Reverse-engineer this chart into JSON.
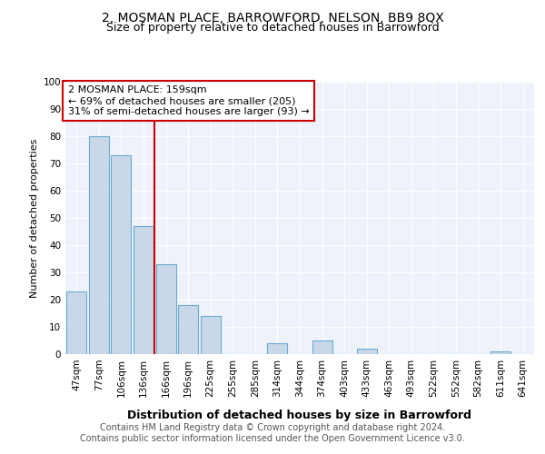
{
  "title": "2, MOSMAN PLACE, BARROWFORD, NELSON, BB9 8QX",
  "subtitle": "Size of property relative to detached houses in Barrowford",
  "xlabel": "Distribution of detached houses by size in Barrowford",
  "ylabel": "Number of detached properties",
  "footer_line1": "Contains HM Land Registry data © Crown copyright and database right 2024.",
  "footer_line2": "Contains public sector information licensed under the Open Government Licence v3.0.",
  "annotation_line1": "2 MOSMAN PLACE: 159sqm",
  "annotation_line2": "← 69% of detached houses are smaller (205)",
  "annotation_line3": "31% of semi-detached houses are larger (93) →",
  "categories": [
    "47sqm",
    "77sqm",
    "106sqm",
    "136sqm",
    "166sqm",
    "196sqm",
    "225sqm",
    "255sqm",
    "285sqm",
    "314sqm",
    "344sqm",
    "374sqm",
    "403sqm",
    "433sqm",
    "463sqm",
    "493sqm",
    "522sqm",
    "552sqm",
    "582sqm",
    "611sqm",
    "641sqm"
  ],
  "values": [
    23,
    80,
    73,
    47,
    33,
    18,
    14,
    0,
    0,
    4,
    0,
    5,
    0,
    2,
    0,
    0,
    0,
    0,
    0,
    1,
    0
  ],
  "vline_position": 3.5,
  "bar_color": "#c8d8e8",
  "bar_edge_color": "#6aaad4",
  "vline_color": "#cc0000",
  "annotation_box_edge_color": "#cc0000",
  "background_color": "#eef2fb",
  "ylim": [
    0,
    100
  ],
  "yticks": [
    0,
    10,
    20,
    30,
    40,
    50,
    60,
    70,
    80,
    90,
    100
  ],
  "title_fontsize": 10,
  "subtitle_fontsize": 9,
  "xlabel_fontsize": 9,
  "ylabel_fontsize": 8,
  "tick_fontsize": 7.5,
  "annotation_fontsize": 8,
  "footer_fontsize": 7
}
